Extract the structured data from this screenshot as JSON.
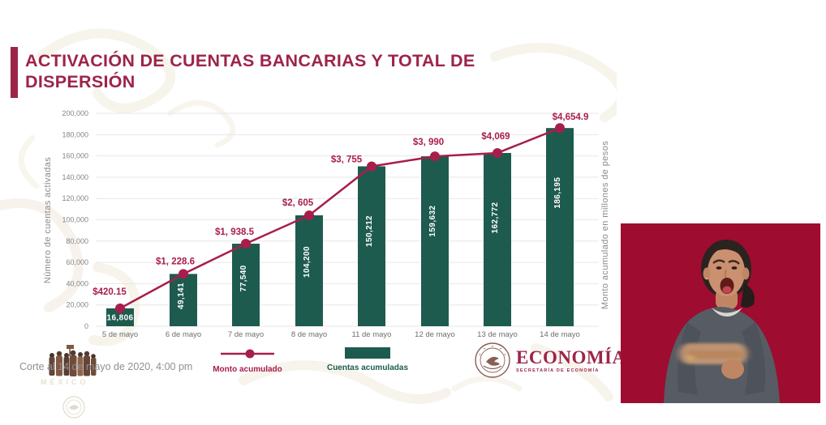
{
  "colors": {
    "accent": "#9d2449",
    "bar": "#1e5b4f",
    "line": "#a81e4b",
    "video_bg": "#9e0c2f"
  },
  "title": {
    "text": "ACTIVACIÓN DE CUENTAS BANCARIAS Y TOTAL DE DISPERSIÓN"
  },
  "footer": {
    "cutoff_note": "Corte al 14 de mayo de 2020, 4:00 pm"
  },
  "legend": {
    "monto": {
      "label": "Monto acumulado"
    },
    "cuentas": {
      "label": "Cuentas acumuladas"
    }
  },
  "logo": {
    "name": "ECONOMÍA",
    "subtitle": "SECRETARÍA DE ECONOMÍA"
  },
  "chart_data": {
    "type": "bar",
    "combo": "bar+line",
    "grid": "horizontal",
    "legend_position": "bottom",
    "categories": [
      "5 de mayo",
      "6 de mayo",
      "7 de mayo",
      "8 de mayo",
      "11 de mayo",
      "12 de mayo",
      "13 de mayo",
      "14 de mayo"
    ],
    "series": [
      {
        "name": "Cuentas acumuladas",
        "type": "bar",
        "axis": "left",
        "values": [
          16806,
          49141,
          77540,
          104200,
          150212,
          159632,
          162772,
          186195
        ],
        "labels": [
          "16,806",
          "49,141",
          "77,540",
          "104,200",
          "150,212",
          "159,632",
          "162,772",
          "186,195"
        ]
      },
      {
        "name": "Monto acumulado",
        "type": "line",
        "axis": "right",
        "values": [
          420.15,
          1228.6,
          1938.5,
          2605,
          3755,
          3990,
          4069,
          4654.9
        ],
        "labels": [
          "$420.15",
          "$1, 228.6",
          "$1, 938.5",
          "$2, 605",
          "$3, 755",
          "$3, 990",
          "$4,069",
          "$4,654.9"
        ]
      }
    ],
    "left_axis": {
      "title": "Número de cuentas activadas",
      "min": 0,
      "max": 200000,
      "ticks": [
        {
          "label": "0",
          "value": 0
        },
        {
          "label": "20,000",
          "value": 20000
        },
        {
          "label": "40,000",
          "value": 40000
        },
        {
          "label": "60,000",
          "value": 60000
        },
        {
          "label": "80,000",
          "value": 80000
        },
        {
          "label": "100,000",
          "value": 100000
        },
        {
          "label": "120,000",
          "value": 120000
        },
        {
          "label": "140,000",
          "value": 140000
        },
        {
          "label": "160,000",
          "value": 160000
        },
        {
          "label": "180,000",
          "value": 180000
        },
        {
          "label": "200,000",
          "value": 200000
        }
      ]
    },
    "right_axis": {
      "title": "Monto acumulado en millones de pesos",
      "min": 0,
      "max": 5000
    }
  }
}
